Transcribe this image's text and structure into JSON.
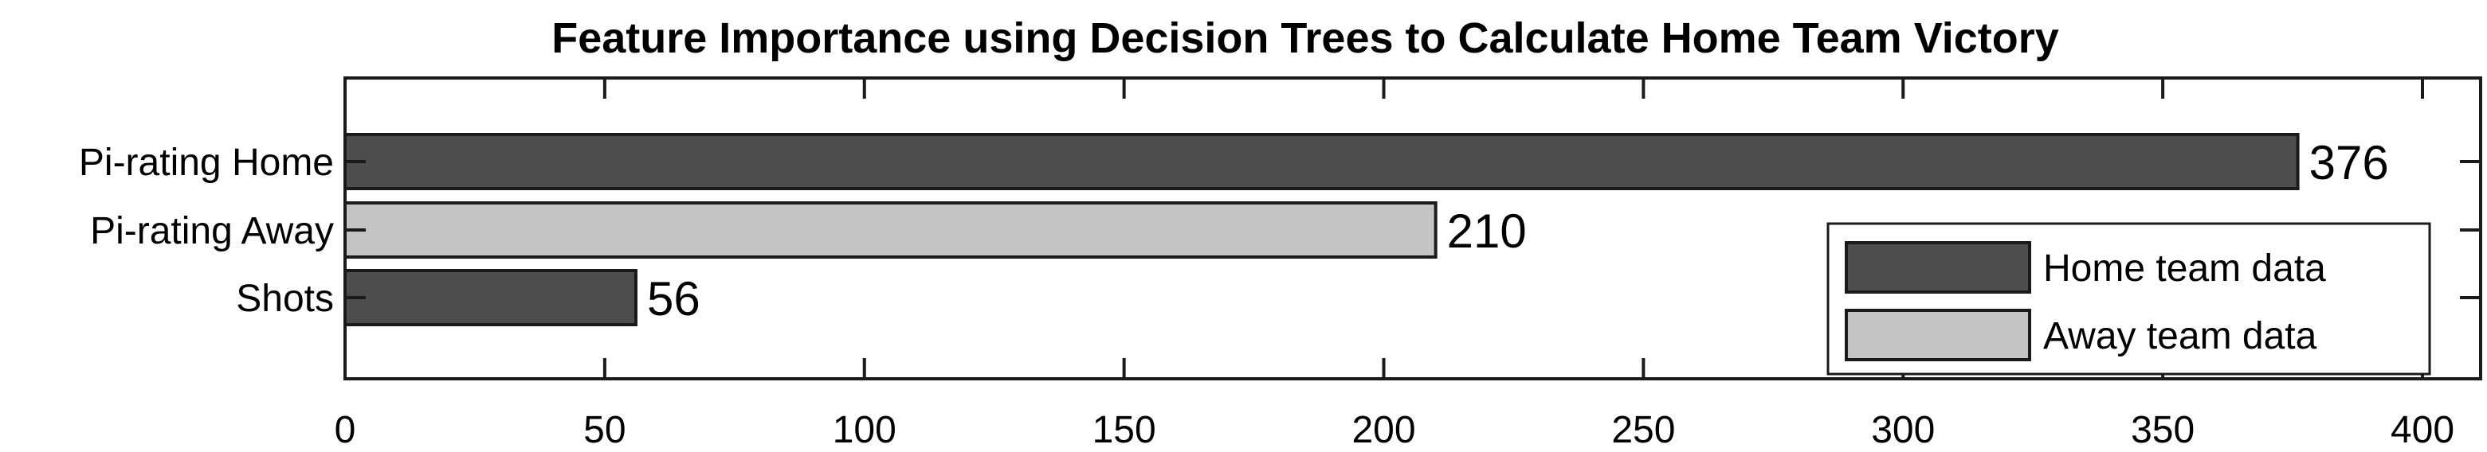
{
  "chart_data": {
    "type": "bar",
    "orientation": "horizontal",
    "title": "Feature Importance using Decision Trees to Calculate Home Team Victory",
    "xlabel": "",
    "ylabel": "",
    "xlim": [
      0,
      410
    ],
    "x_ticks": [
      0,
      50,
      100,
      150,
      200,
      250,
      300,
      350,
      400
    ],
    "grid": false,
    "legend_position": "bottom-right",
    "categories": [
      "Pi-rating Home",
      "Pi-rating Away",
      "Shots"
    ],
    "values": [
      376,
      210,
      56
    ],
    "data_labels": [
      "376",
      "210",
      "56"
    ],
    "bar_groups": [
      "home",
      "away",
      "home"
    ],
    "legend": [
      {
        "key": "home",
        "label": "Home team data",
        "color": "#4d4d4d"
      },
      {
        "key": "away",
        "label": "Away team data",
        "color": "#c4c4c4"
      }
    ]
  }
}
